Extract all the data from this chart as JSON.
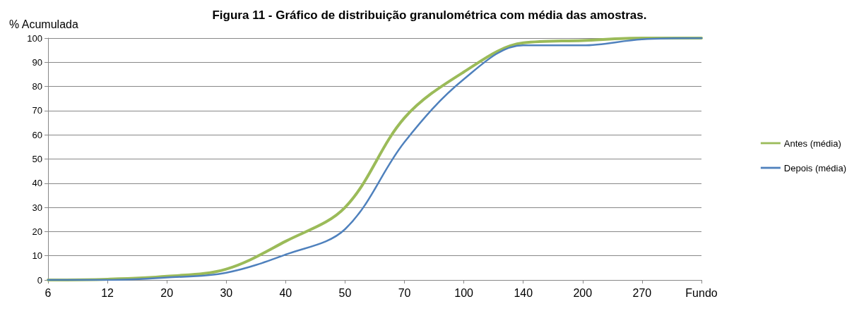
{
  "chart_data": {
    "type": "line",
    "title": "Figura 11 - Gráfico de distribuição granulométrica com média das amostras.",
    "ylabel": "% Acumulada",
    "categories": [
      "6",
      "12",
      "20",
      "30",
      "40",
      "50",
      "70",
      "100",
      "140",
      "200",
      "270",
      "Fundo"
    ],
    "series": [
      {
        "name": "Antes (média)",
        "color": "#9bbb59",
        "values": [
          0,
          0.3,
          1.5,
          4.5,
          16,
          30,
          67,
          86,
          98,
          99,
          100,
          100
        ]
      },
      {
        "name": "Depois (média)",
        "color": "#4f81bd",
        "values": [
          0,
          0,
          1,
          3,
          10.5,
          21,
          57,
          83,
          97,
          97,
          99.5,
          100
        ]
      }
    ],
    "ylim": [
      0,
      100
    ],
    "yticks": [
      0,
      10,
      20,
      30,
      40,
      50,
      60,
      70,
      80,
      90,
      100
    ],
    "grid": "y",
    "legend": "right",
    "marker": "none",
    "line_style": "solid"
  }
}
